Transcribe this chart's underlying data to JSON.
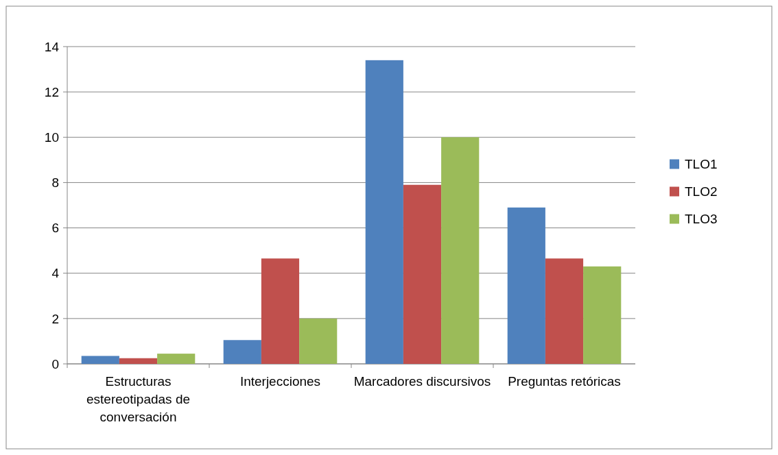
{
  "chart_data": {
    "type": "bar",
    "categories": [
      "Estructuras estereotipadas de conversación",
      "Interjecciones",
      "Marcadores discursivos",
      "Preguntas retóricas"
    ],
    "series": [
      {
        "name": "TLO1",
        "color": "#4f81bd",
        "values": [
          0.35,
          1.05,
          13.4,
          6.9
        ]
      },
      {
        "name": "TLO2",
        "color": "#c0504d",
        "values": [
          0.25,
          4.65,
          7.9,
          4.65
        ]
      },
      {
        "name": "TLO3",
        "color": "#9bbb59",
        "values": [
          0.45,
          2,
          10,
          4.3
        ]
      }
    ],
    "ylim": [
      0,
      14
    ],
    "yticks": [
      0,
      2,
      4,
      6,
      8,
      10,
      12,
      14
    ],
    "grid": "y",
    "legend": "right"
  }
}
